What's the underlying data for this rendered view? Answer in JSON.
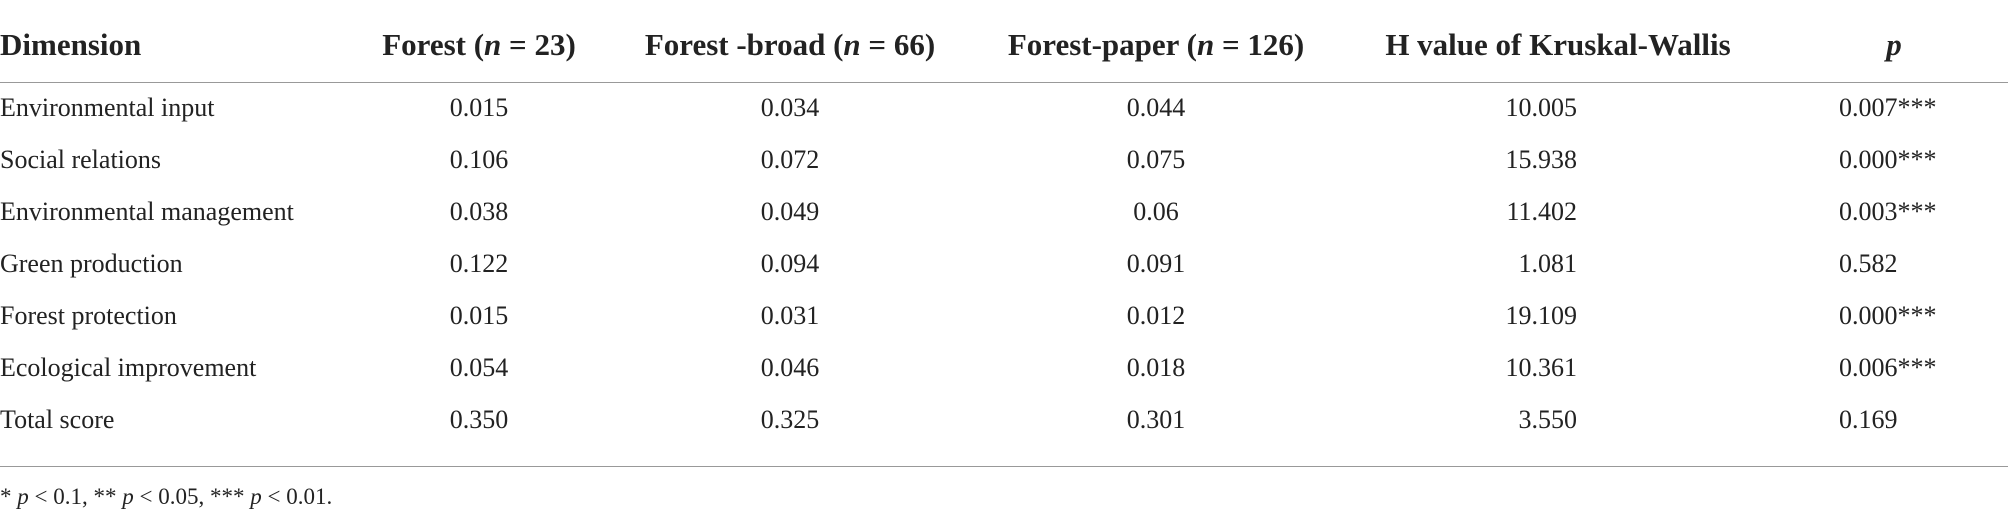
{
  "table": {
    "headers": [
      [
        "Dimension"
      ],
      [
        "Forest (",
        "n",
        " = 23)"
      ],
      [
        "Forest -broad (",
        "n",
        " = 66)"
      ],
      [
        "Forest-paper (",
        "n",
        " = 126)"
      ],
      [
        "H value of Kruskal-Wallis"
      ],
      [
        "",
        "p"
      ]
    ],
    "rows": [
      [
        "Environmental input",
        "0.015",
        "0.034",
        "0.044",
        "10.005",
        "0.007***"
      ],
      [
        "Social relations",
        "0.106",
        "0.072",
        "0.075",
        "15.938",
        "0.000***"
      ],
      [
        "Environmental management",
        "0.038",
        "0.049",
        "0.06",
        "11.402",
        "0.003***"
      ],
      [
        "Green production",
        "0.122",
        "0.094",
        "0.091",
        "1.081",
        "0.582"
      ],
      [
        "Forest protection",
        "0.015",
        "0.031",
        "0.012",
        "19.109",
        "0.000***"
      ],
      [
        "Ecological improvement",
        "0.054",
        "0.046",
        "0.018",
        "10.361",
        "0.006***"
      ],
      [
        "Total score",
        "0.350",
        "0.325",
        "0.301",
        "3.550",
        "0.169"
      ]
    ]
  },
  "footnote": [
    "* ",
    "p",
    " < 0.1, ** ",
    "p",
    " < 0.05, *** ",
    "p",
    " < 0.01."
  ]
}
